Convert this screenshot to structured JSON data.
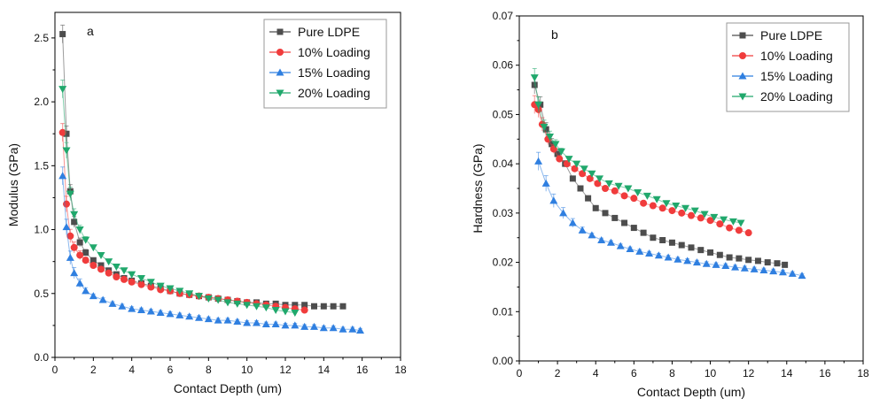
{
  "chart_data": [
    {
      "type": "line",
      "panel_letter": "a",
      "xlabel": "Contact Depth (um)",
      "ylabel": "Modulus (GPa)",
      "xlim": [
        0,
        18
      ],
      "ylim": [
        0,
        2.7
      ],
      "x_ticks": [
        "0",
        "2",
        "4",
        "6",
        "8",
        "10",
        "12",
        "14",
        "16",
        "18"
      ],
      "y_ticks": [
        "0.0",
        "0.5",
        "1.0",
        "1.5",
        "2.0",
        "2.5"
      ],
      "y_tick_values": [
        0,
        0.5,
        1.0,
        1.5,
        2.0,
        2.5
      ],
      "legend_placement": "top-right",
      "error_bars": true,
      "series": [
        {
          "name": "Pure LDPE",
          "color": "#4d4d4d",
          "marker": "square",
          "x": [
            0.4,
            0.6,
            0.8,
            1.0,
            1.3,
            1.6,
            2.0,
            2.4,
            2.8,
            3.2,
            3.6,
            4.0,
            4.5,
            5.0,
            5.5,
            6.0,
            6.5,
            7.0,
            7.5,
            8.0,
            8.5,
            9.0,
            9.5,
            10.0,
            10.5,
            11.0,
            11.5,
            12.0,
            12.5,
            13.0,
            13.5,
            14.0,
            14.5,
            15.0
          ],
          "y": [
            2.53,
            1.75,
            1.3,
            1.06,
            0.9,
            0.82,
            0.76,
            0.72,
            0.68,
            0.65,
            0.62,
            0.6,
            0.58,
            0.56,
            0.54,
            0.52,
            0.5,
            0.49,
            0.48,
            0.47,
            0.46,
            0.45,
            0.44,
            0.43,
            0.43,
            0.42,
            0.42,
            0.41,
            0.41,
            0.41,
            0.4,
            0.4,
            0.4,
            0.4
          ]
        },
        {
          "name": "10% Loading",
          "color": "#f03c3c",
          "marker": "circle",
          "x": [
            0.4,
            0.6,
            0.8,
            1.0,
            1.3,
            1.6,
            2.0,
            2.4,
            2.8,
            3.2,
            3.6,
            4.0,
            4.5,
            5.0,
            5.5,
            6.0,
            6.5,
            7.0,
            7.5,
            8.0,
            8.5,
            9.0,
            9.5,
            10.0,
            10.5,
            11.0,
            11.5,
            12.0,
            12.5,
            13.0
          ],
          "y": [
            1.76,
            1.2,
            0.95,
            0.86,
            0.8,
            0.76,
            0.72,
            0.69,
            0.66,
            0.63,
            0.61,
            0.59,
            0.57,
            0.55,
            0.53,
            0.52,
            0.5,
            0.49,
            0.48,
            0.47,
            0.46,
            0.45,
            0.44,
            0.43,
            0.42,
            0.41,
            0.4,
            0.39,
            0.38,
            0.37
          ]
        },
        {
          "name": "15% Loading",
          "color": "#2f7fe0",
          "marker": "triangle-up",
          "x": [
            0.4,
            0.6,
            0.8,
            1.0,
            1.3,
            1.6,
            2.0,
            2.5,
            3.0,
            3.5,
            4.0,
            4.5,
            5.0,
            5.5,
            6.0,
            6.5,
            7.0,
            7.5,
            8.0,
            8.5,
            9.0,
            9.5,
            10.0,
            10.5,
            11.0,
            11.5,
            12.0,
            12.5,
            13.0,
            13.5,
            14.0,
            14.5,
            15.0,
            15.5,
            15.9
          ],
          "y": [
            1.42,
            1.02,
            0.78,
            0.66,
            0.58,
            0.52,
            0.48,
            0.45,
            0.42,
            0.4,
            0.38,
            0.37,
            0.36,
            0.35,
            0.34,
            0.33,
            0.32,
            0.31,
            0.3,
            0.29,
            0.29,
            0.28,
            0.27,
            0.27,
            0.26,
            0.26,
            0.25,
            0.25,
            0.24,
            0.24,
            0.23,
            0.23,
            0.22,
            0.22,
            0.21
          ]
        },
        {
          "name": "20% Loading",
          "color": "#20a86c",
          "marker": "triangle-down",
          "x": [
            0.4,
            0.6,
            0.8,
            1.0,
            1.3,
            1.6,
            2.0,
            2.4,
            2.8,
            3.2,
            3.6,
            4.0,
            4.5,
            5.0,
            5.5,
            6.0,
            6.5,
            7.0,
            7.5,
            8.0,
            8.5,
            9.0,
            9.5,
            10.0,
            10.5,
            11.0,
            11.5,
            12.0,
            12.5
          ],
          "y": [
            2.1,
            1.62,
            1.28,
            1.12,
            1.0,
            0.92,
            0.86,
            0.8,
            0.75,
            0.71,
            0.68,
            0.65,
            0.62,
            0.59,
            0.56,
            0.54,
            0.52,
            0.5,
            0.48,
            0.46,
            0.45,
            0.43,
            0.42,
            0.41,
            0.4,
            0.39,
            0.37,
            0.36,
            0.35
          ]
        }
      ]
    },
    {
      "type": "line",
      "panel_letter": "b",
      "xlabel": "Contact Depth (um)",
      "ylabel": "Hardness (GPa)",
      "xlim": [
        0,
        18
      ],
      "ylim": [
        0,
        0.07
      ],
      "x_ticks": [
        "0",
        "2",
        "4",
        "6",
        "8",
        "10",
        "12",
        "14",
        "16",
        "18"
      ],
      "y_ticks": [
        "0.00",
        "0.01",
        "0.02",
        "0.03",
        "0.04",
        "0.05",
        "0.06",
        "0.07"
      ],
      "y_tick_values": [
        0,
        0.01,
        0.02,
        0.03,
        0.04,
        0.05,
        0.06,
        0.07
      ],
      "legend_placement": "top-right",
      "error_bars": true,
      "series": [
        {
          "name": "Pure LDPE",
          "color": "#4d4d4d",
          "marker": "square",
          "x": [
            0.8,
            1.1,
            1.4,
            1.7,
            2.0,
            2.4,
            2.8,
            3.2,
            3.6,
            4.0,
            4.5,
            5.0,
            5.5,
            6.0,
            6.5,
            7.0,
            7.5,
            8.0,
            8.5,
            9.0,
            9.5,
            10.0,
            10.5,
            11.0,
            11.5,
            12.0,
            12.5,
            13.0,
            13.5,
            13.9
          ],
          "y": [
            0.056,
            0.052,
            0.047,
            0.044,
            0.042,
            0.04,
            0.037,
            0.035,
            0.033,
            0.031,
            0.03,
            0.029,
            0.028,
            0.027,
            0.026,
            0.025,
            0.0245,
            0.024,
            0.0235,
            0.023,
            0.0225,
            0.022,
            0.0215,
            0.021,
            0.0208,
            0.0205,
            0.0203,
            0.02,
            0.0198,
            0.0195
          ]
        },
        {
          "name": "10% Loading",
          "color": "#f03c3c",
          "marker": "circle",
          "x": [
            0.8,
            1.0,
            1.2,
            1.5,
            1.8,
            2.1,
            2.5,
            2.9,
            3.3,
            3.7,
            4.1,
            4.5,
            5.0,
            5.5,
            6.0,
            6.5,
            7.0,
            7.5,
            8.0,
            8.5,
            9.0,
            9.5,
            10.0,
            10.5,
            11.0,
            11.5,
            12.0
          ],
          "y": [
            0.052,
            0.051,
            0.048,
            0.045,
            0.043,
            0.041,
            0.04,
            0.039,
            0.038,
            0.037,
            0.036,
            0.035,
            0.0345,
            0.0335,
            0.033,
            0.032,
            0.0315,
            0.031,
            0.0305,
            0.03,
            0.0295,
            0.029,
            0.0285,
            0.0278,
            0.027,
            0.0265,
            0.026
          ]
        },
        {
          "name": "15% Loading",
          "color": "#2f7fe0",
          "marker": "triangle-up",
          "x": [
            1.0,
            1.4,
            1.8,
            2.3,
            2.8,
            3.3,
            3.8,
            4.3,
            4.8,
            5.3,
            5.8,
            6.3,
            6.8,
            7.3,
            7.8,
            8.3,
            8.8,
            9.3,
            9.8,
            10.3,
            10.8,
            11.3,
            11.8,
            12.3,
            12.8,
            13.3,
            13.8,
            14.3,
            14.8
          ],
          "y": [
            0.0405,
            0.036,
            0.0325,
            0.03,
            0.028,
            0.0265,
            0.0255,
            0.0245,
            0.024,
            0.0233,
            0.0227,
            0.0222,
            0.0218,
            0.0214,
            0.021,
            0.0206,
            0.0203,
            0.02,
            0.0197,
            0.0195,
            0.0193,
            0.019,
            0.0188,
            0.0186,
            0.0184,
            0.0182,
            0.018,
            0.0177,
            0.0173
          ]
        },
        {
          "name": "20% Loading",
          "color": "#20a86c",
          "marker": "triangle-down",
          "x": [
            0.8,
            1.0,
            1.3,
            1.6,
            1.9,
            2.2,
            2.6,
            3.0,
            3.4,
            3.8,
            4.2,
            4.7,
            5.2,
            5.7,
            6.2,
            6.7,
            7.2,
            7.7,
            8.2,
            8.7,
            9.2,
            9.7,
            10.2,
            10.7,
            11.2,
            11.6
          ],
          "y": [
            0.0575,
            0.052,
            0.0475,
            0.0455,
            0.044,
            0.0425,
            0.041,
            0.04,
            0.039,
            0.038,
            0.037,
            0.036,
            0.0355,
            0.035,
            0.0342,
            0.0335,
            0.0328,
            0.032,
            0.0315,
            0.031,
            0.0305,
            0.0298,
            0.0292,
            0.0287,
            0.0283,
            0.028
          ]
        }
      ]
    }
  ]
}
